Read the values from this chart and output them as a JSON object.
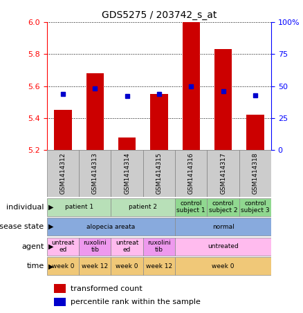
{
  "title": "GDS5275 / 203742_s_at",
  "samples": [
    "GSM1414312",
    "GSM1414313",
    "GSM1414314",
    "GSM1414315",
    "GSM1414316",
    "GSM1414317",
    "GSM1414318"
  ],
  "transformed_count": [
    5.45,
    5.68,
    5.28,
    5.55,
    6.0,
    5.83,
    5.42
  ],
  "percentile_rank": [
    44,
    48,
    42,
    44,
    50,
    46,
    43
  ],
  "ylim_left": [
    5.2,
    6.0
  ],
  "ylim_right": [
    0,
    100
  ],
  "yticks_left": [
    5.2,
    5.4,
    5.6,
    5.8,
    6.0
  ],
  "yticks_right": [
    0,
    25,
    50,
    75,
    100
  ],
  "bar_color": "#cc0000",
  "dot_color": "#0000cc",
  "sample_bg_color": "#cccccc",
  "rows": [
    {
      "label": "individual",
      "cells": [
        {
          "text": "patient 1",
          "span": 2,
          "color": "#b8e0b8"
        },
        {
          "text": "patient 2",
          "span": 2,
          "color": "#b8e0b8"
        },
        {
          "text": "control\nsubject 1",
          "span": 1,
          "color": "#90d890"
        },
        {
          "text": "control\nsubject 2",
          "span": 1,
          "color": "#90d890"
        },
        {
          "text": "control\nsubject 3",
          "span": 1,
          "color": "#90d890"
        }
      ]
    },
    {
      "label": "disease state",
      "cells": [
        {
          "text": "alopecia areata",
          "span": 4,
          "color": "#88aadd"
        },
        {
          "text": "normal",
          "span": 3,
          "color": "#88aadd"
        }
      ]
    },
    {
      "label": "agent",
      "cells": [
        {
          "text": "untreat\ned",
          "span": 1,
          "color": "#ffbbee"
        },
        {
          "text": "ruxolini\ntib",
          "span": 1,
          "color": "#ee99ee"
        },
        {
          "text": "untreat\ned",
          "span": 1,
          "color": "#ffbbee"
        },
        {
          "text": "ruxolini\ntib",
          "span": 1,
          "color": "#ee99ee"
        },
        {
          "text": "untreated",
          "span": 3,
          "color": "#ffbbee"
        }
      ]
    },
    {
      "label": "time",
      "cells": [
        {
          "text": "week 0",
          "span": 1,
          "color": "#f0c878"
        },
        {
          "text": "week 12",
          "span": 1,
          "color": "#f0c878"
        },
        {
          "text": "week 0",
          "span": 1,
          "color": "#f0c878"
        },
        {
          "text": "week 12",
          "span": 1,
          "color": "#f0c878"
        },
        {
          "text": "week 0",
          "span": 3,
          "color": "#f0c878"
        }
      ]
    }
  ],
  "legend": [
    {
      "color": "#cc0000",
      "label": "transformed count"
    },
    {
      "color": "#0000cc",
      "label": "percentile rank within the sample"
    }
  ]
}
